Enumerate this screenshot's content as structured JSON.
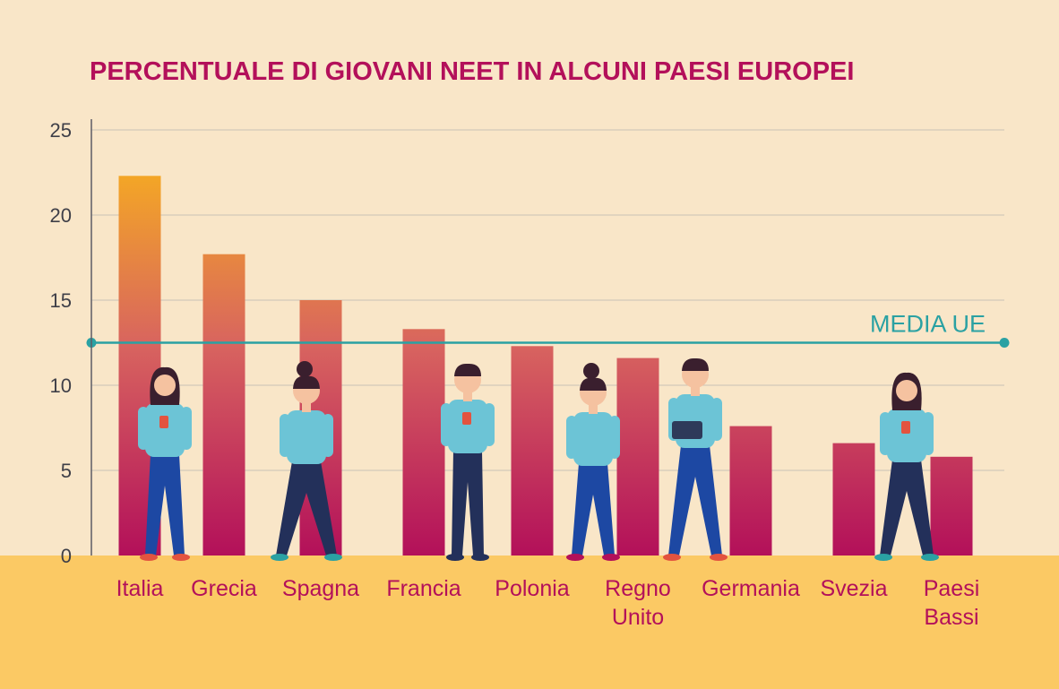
{
  "colors": {
    "background": "#f9e6c8",
    "ground": "#fbc964",
    "title": "#b3105a",
    "bar_top": "#f4a725",
    "bar_mid": "#d8645f",
    "bar_bottom": "#b3105a",
    "average_line": "#2aa1a3",
    "grid": "#c9c1b6",
    "axis": "#5c5c66",
    "tick_label": "#3f3f48",
    "category_label": "#b3105a",
    "figure_shirt": "#6cc4d6",
    "figure_pants": "#1d48a3",
    "figure_pants_dark": "#23305a",
    "figure_skin": "#f5c2a0",
    "figure_hair": "#3a1f2e"
  },
  "chart_data": {
    "type": "bar",
    "title": "PERCENTUALE DI GIOVANI NEET IN ALCUNI PAESI EUROPEI",
    "xlabel": "",
    "ylabel": "",
    "categories": [
      [
        "Italia"
      ],
      [
        "Grecia"
      ],
      [
        "Spagna"
      ],
      [
        "Francia"
      ],
      [
        "Polonia"
      ],
      [
        "Regno",
        "Unito"
      ],
      [
        "Germania"
      ],
      [
        "Svezia"
      ],
      [
        "Paesi",
        "Bassi"
      ]
    ],
    "values": [
      22.3,
      17.7,
      15.0,
      13.3,
      12.3,
      11.6,
      7.6,
      6.6,
      5.8
    ],
    "ylim": [
      0,
      25
    ],
    "yticks": [
      "0",
      "5",
      "10",
      "15",
      "20",
      "25"
    ],
    "grid": true,
    "reference_line": {
      "label": "MEDIA UE",
      "value": 12.5
    },
    "decorations": [
      "person-icons"
    ]
  }
}
